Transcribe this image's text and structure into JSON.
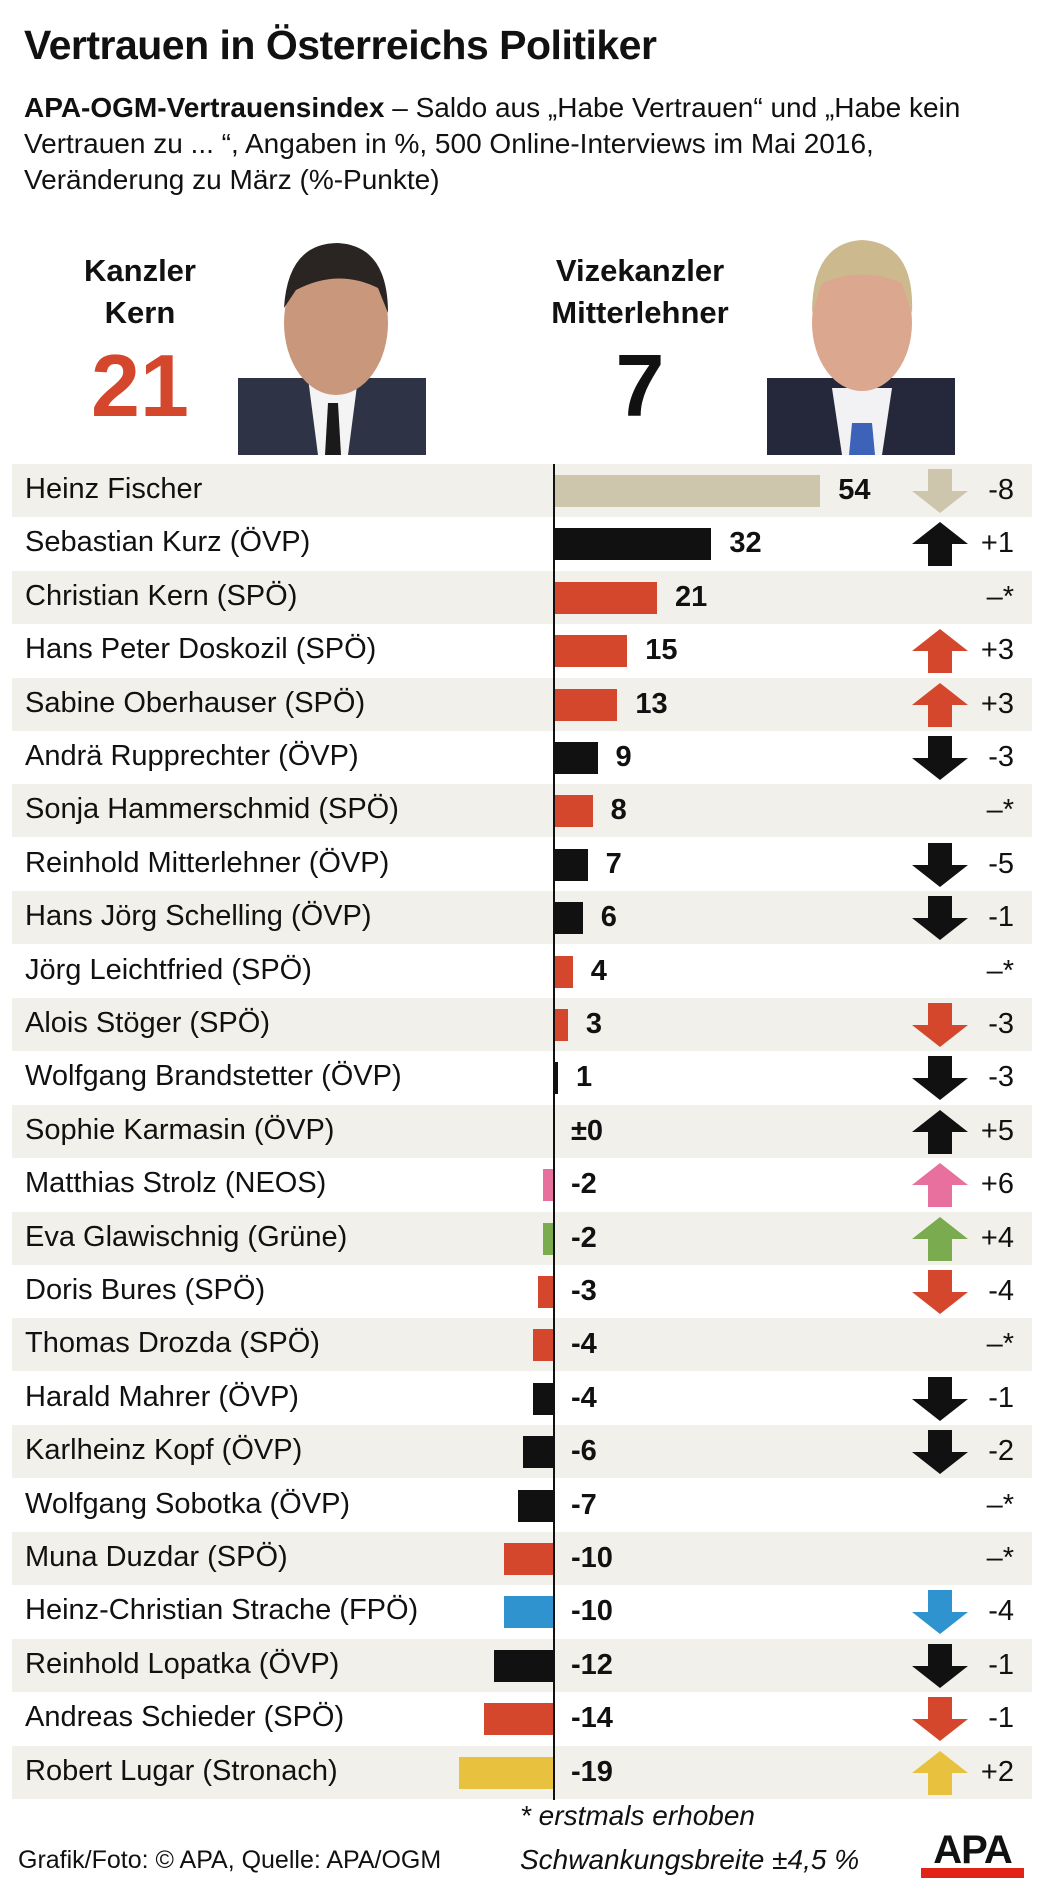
{
  "header": {
    "title": "Vertrauen in Österreichs Politiker",
    "subtitle_bold": "APA-OGM-Vertrauensindex",
    "subtitle_rest": " – Saldo aus „Habe Vertrauen“ und „Habe kein Vertrauen zu ... “, Angaben in %, 500 Online-Interviews im Mai 2016, Veränderung zu März (%-Punkte)"
  },
  "leads": [
    {
      "line1": "Kanzler",
      "line2": "Kern",
      "value": "21",
      "color": "#d4472c"
    },
    {
      "line1": "Vizekanzler",
      "line2": "Mitterlehner",
      "value": "7",
      "color": "#111111"
    }
  ],
  "chart_data": {
    "type": "bar",
    "orientation": "horizontal",
    "title": "Vertrauen in Österreichs Politiker",
    "xlim": [
      -19,
      54
    ],
    "categories": [
      "Heinz Fischer",
      "Sebastian Kurz (ÖVP)",
      "Christian Kern (SPÖ)",
      "Hans Peter Doskozil (SPÖ)",
      "Sabine Oberhauser (SPÖ)",
      "Andrä Rupprechter (ÖVP)",
      "Sonja Hammerschmid (SPÖ)",
      "Reinhold Mitterlehner (ÖVP)",
      "Hans Jörg Schelling (ÖVP)",
      "Jörg Leichtfried (SPÖ)",
      "Alois Stöger (SPÖ)",
      "Wolfgang Brandstetter (ÖVP)",
      "Sophie Karmasin (ÖVP)",
      "Matthias Strolz (NEOS)",
      "Eva Glawischnig (Grüne)",
      "Doris Bures (SPÖ)",
      "Thomas Drozda (SPÖ)",
      "Harald Mahrer (ÖVP)",
      "Karlheinz Kopf (ÖVP)",
      "Wolfgang Sobotka (ÖVP)",
      "Muna Duzdar (SPÖ)",
      "Heinz-Christian Strache (FPÖ)",
      "Reinhold Lopatka (ÖVP)",
      "Andreas Schieder (SPÖ)",
      "Robert Lugar (Stronach)"
    ],
    "values": [
      54,
      32,
      21,
      15,
      13,
      9,
      8,
      7,
      6,
      4,
      3,
      1,
      0,
      -2,
      -2,
      -3,
      -4,
      -4,
      -6,
      -7,
      -10,
      -10,
      -12,
      -14,
      -19
    ],
    "value_labels": [
      "54",
      "32",
      "21",
      "15",
      "13",
      "9",
      "8",
      "7",
      "6",
      "4",
      "3",
      "1",
      "±0",
      "-2",
      "-2",
      "-3",
      "-4",
      "-4",
      "-6",
      "-7",
      "-10",
      "-10",
      "-12",
      "-14",
      "-19"
    ],
    "changes": [
      "-8",
      "+1",
      "–*",
      "+3",
      "+3",
      "-3",
      "–*",
      "-5",
      "-1",
      "–*",
      "-3",
      "-3",
      "+5",
      "+6",
      "+4",
      "-4",
      "–*",
      "-1",
      "-2",
      "–*",
      "–*",
      "-4",
      "-1",
      "-1",
      "+2"
    ],
    "directions": [
      "down",
      "up",
      "none",
      "up",
      "up",
      "down",
      "none",
      "down",
      "down",
      "none",
      "down",
      "down",
      "up",
      "up",
      "up",
      "down",
      "none",
      "down",
      "down",
      "none",
      "none",
      "down",
      "down",
      "down",
      "up"
    ],
    "colors": [
      "#cdc6ad",
      "#111111",
      "#d4472c",
      "#d4472c",
      "#d4472c",
      "#111111",
      "#d4472c",
      "#111111",
      "#111111",
      "#d4472c",
      "#d4472c",
      "#111111",
      "#111111",
      "#e8709e",
      "#7aab4e",
      "#d4472c",
      "#d4472c",
      "#111111",
      "#111111",
      "#111111",
      "#d4472c",
      "#2e93cf",
      "#111111",
      "#d4472c",
      "#e8c23e"
    ]
  },
  "footer": {
    "note": "* erstmals erhoben",
    "credit": "Grafik/Foto: © APA, Quelle: APA/OGM",
    "margin": "Schwankungsbreite ±4,5 %",
    "logo": "APA"
  }
}
